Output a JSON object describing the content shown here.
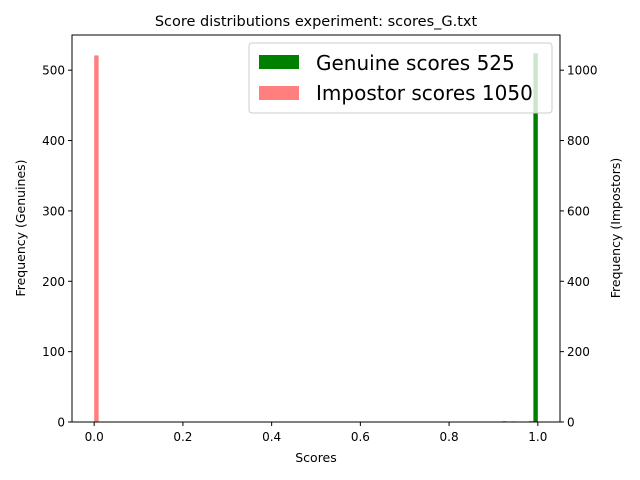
{
  "chart_data": {
    "type": "bar",
    "title": "Score distributions experiment: scores_G.txt",
    "xlabel": "Scores",
    "ylabel_left": "Frequency (Genuines)",
    "ylabel_right": "Frequency (Impostors)",
    "xlim": [
      -0.05,
      1.05
    ],
    "ylim_left": [
      0,
      550
    ],
    "ylim_right": [
      0,
      1100
    ],
    "xticks": [
      0.0,
      0.2,
      0.4,
      0.6,
      0.8,
      1.0
    ],
    "xtick_labels": [
      "0.0",
      "0.2",
      "0.4",
      "0.6",
      "0.8",
      "1.0"
    ],
    "yticks_left": [
      0,
      100,
      200,
      300,
      400,
      500
    ],
    "yticks_right": [
      0,
      200,
      400,
      600,
      800,
      1000
    ],
    "bin_width": 0.01,
    "legend_position": "top-right",
    "series": [
      {
        "name": "Genuine scores 525",
        "axis": "left",
        "color": "#008000",
        "bins": [
          {
            "x": 0.925,
            "value": 1
          },
          {
            "x": 0.995,
            "value": 524
          }
        ]
      },
      {
        "name": "Impostor scores 1050",
        "axis": "right",
        "color": "#ff7f7f",
        "bins": [
          {
            "x": 0.005,
            "value": 1042
          },
          {
            "x": 0.115,
            "value": 1
          },
          {
            "x": 0.475,
            "value": 1
          },
          {
            "x": 0.685,
            "value": 1
          },
          {
            "x": 0.945,
            "value": 2
          },
          {
            "x": 0.985,
            "value": 3
          }
        ]
      }
    ]
  }
}
